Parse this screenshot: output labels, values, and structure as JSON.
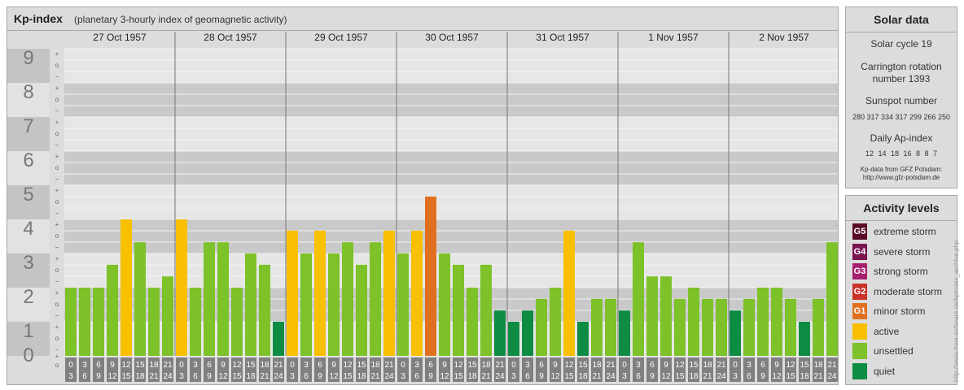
{
  "header": {
    "title": "Kp-index",
    "subtitle": "(planetary 3-hourly index of geomagnetic activity)"
  },
  "solar": {
    "title": "Solar data",
    "cycle": "Solar cycle 19",
    "carrington_line1": "Carrington rotation",
    "carrington_line2": "number 1393",
    "sunspot_label": "Sunspot number",
    "sunspot_values": "280 317 334 317 299 266 250",
    "ap_label": "Daily Ap-index",
    "ap_values": "12  14  18  16  8  8  7",
    "source_line1": "Kp-data from GFZ Potsdam:",
    "source_line2": "http://www.gfz-potsdam.de"
  },
  "activity": {
    "title": "Activity levels",
    "levels": [
      {
        "badge": "G5",
        "label": "extreme storm",
        "color": "#5a0a28"
      },
      {
        "badge": "G4",
        "label": "severe storm",
        "color": "#7a1450"
      },
      {
        "badge": "G3",
        "label": "strong storm",
        "color": "#a81e6e"
      },
      {
        "badge": "G2",
        "label": "moderate storm",
        "color": "#c8322a"
      },
      {
        "badge": "G1",
        "label": "minor storm",
        "color": "#e07020"
      },
      {
        "badge": "",
        "label": "active",
        "color": "#f8c000"
      },
      {
        "badge": "",
        "label": "unsettled",
        "color": "#7cc228"
      },
      {
        "badge": "",
        "label": "quiet",
        "color": "#0e8c44"
      }
    ]
  },
  "credit": "http://www.freie-software.de/kpindex_archive.php",
  "colors": {
    "quiet": "#0e8c44",
    "unsettled": "#7cc228",
    "active": "#f8c000",
    "minor_storm": "#e07020",
    "separator": "#777777",
    "tick_box": "#808080"
  },
  "chart_data": {
    "type": "bar",
    "title": "Kp-index",
    "ylim": [
      0,
      9
    ],
    "y_ticks": [
      "0",
      "1",
      "2",
      "3",
      "4",
      "5",
      "6",
      "7",
      "8",
      "9"
    ],
    "minor_ticks": [
      "−",
      "o",
      "+"
    ],
    "days": [
      "27 Oct 1957",
      "28 Oct 1957",
      "29 Oct 1957",
      "30 Oct 1957",
      "31 Oct 1957",
      "1 Nov 1957",
      "2 Nov 1957"
    ],
    "hour_start": [
      "0",
      "3",
      "6",
      "9",
      "12",
      "15",
      "18",
      "21"
    ],
    "hour_end": [
      "3",
      "6",
      "9",
      "12",
      "15",
      "18",
      "21",
      "24"
    ],
    "values": [
      [
        2.0,
        2.0,
        2.0,
        2.67,
        4.0,
        3.33,
        2.0,
        2.33
      ],
      [
        4.0,
        2.0,
        3.33,
        3.33,
        2.0,
        3.0,
        2.67,
        1.0
      ],
      [
        3.67,
        3.0,
        3.67,
        3.0,
        3.33,
        2.67,
        3.33,
        3.67
      ],
      [
        3.0,
        3.67,
        4.67,
        3.0,
        2.67,
        2.0,
        2.67,
        1.33
      ],
      [
        1.0,
        1.33,
        1.67,
        2.0,
        3.67,
        1.0,
        1.67,
        1.67
      ],
      [
        1.33,
        3.33,
        2.33,
        2.33,
        1.67,
        2.0,
        1.67,
        1.67
      ],
      [
        1.33,
        1.67,
        2.0,
        2.0,
        1.67,
        1.0,
        1.67,
        3.33
      ]
    ],
    "levels": [
      [
        1,
        1,
        1,
        1,
        2,
        1,
        1,
        1
      ],
      [
        2,
        1,
        1,
        1,
        1,
        1,
        1,
        0
      ],
      [
        2,
        1,
        2,
        1,
        1,
        1,
        1,
        2
      ],
      [
        1,
        2,
        3,
        1,
        1,
        1,
        1,
        0
      ],
      [
        0,
        0,
        1,
        1,
        2,
        0,
        1,
        1
      ],
      [
        0,
        1,
        1,
        1,
        1,
        1,
        1,
        1
      ],
      [
        0,
        1,
        1,
        1,
        1,
        0,
        1,
        1
      ]
    ],
    "level_colors": [
      "#0e8c44",
      "#7cc228",
      "#f8c000",
      "#e07020"
    ]
  }
}
